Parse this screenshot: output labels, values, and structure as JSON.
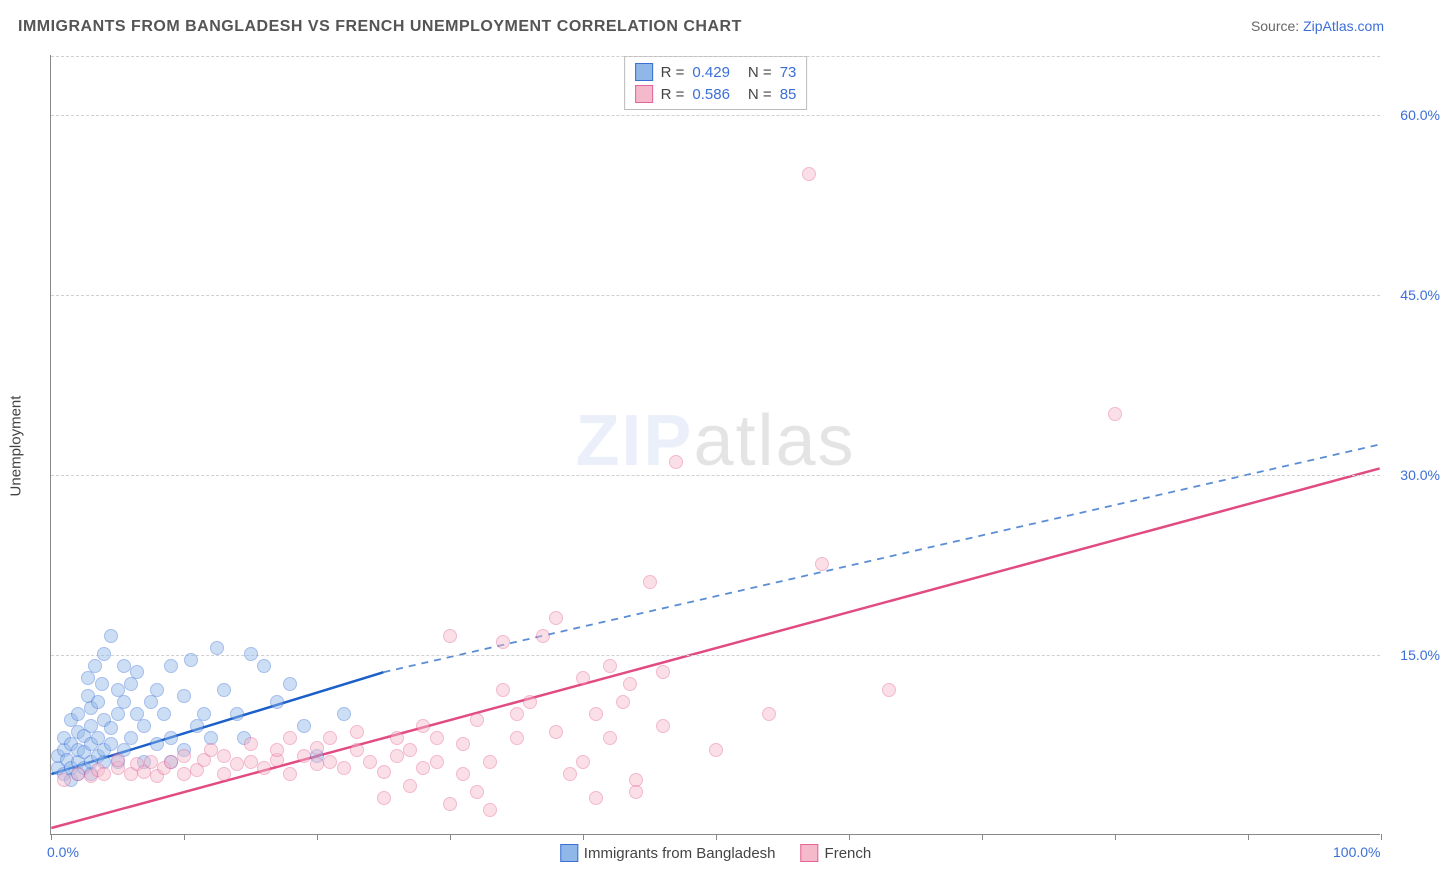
{
  "title": "IMMIGRANTS FROM BANGLADESH VS FRENCH UNEMPLOYMENT CORRELATION CHART",
  "source_label": "Source:",
  "source_name": "ZipAtlas.com",
  "ylabel": "Unemployment",
  "watermark_zip": "ZIP",
  "watermark_rest": "atlas",
  "chart": {
    "type": "scatter",
    "xlim": [
      0,
      100
    ],
    "ylim": [
      0,
      65
    ],
    "xtick_positions": [
      0,
      10,
      20,
      30,
      40,
      50,
      60,
      70,
      80,
      90,
      100
    ],
    "xtick_labels_shown": {
      "0": "0.0%",
      "100": "100.0%"
    },
    "ytick_positions": [
      15,
      30,
      45,
      60
    ],
    "ytick_labels": [
      "15.0%",
      "30.0%",
      "45.0%",
      "60.0%"
    ],
    "grid_color": "#d0d0d0",
    "background_color": "#ffffff",
    "axis_color": "#888888",
    "label_color": "#3b6fd8",
    "marker_radius": 7,
    "marker_opacity": 0.45,
    "series": [
      {
        "name": "Immigrants from Bangladesh",
        "short": "blue",
        "fill": "#8fb7e8",
        "stroke": "#3b6fd8",
        "line_color": "#1b5fc9",
        "dash_color": "#5a8dd6",
        "R": "0.429",
        "N": "73",
        "trend_solid": {
          "x1": 0,
          "y1": 5.0,
          "x2": 25,
          "y2": 13.5
        },
        "trend_dash": {
          "x1": 25,
          "y1": 13.5,
          "x2": 100,
          "y2": 32.5
        },
        "points": [
          [
            0.5,
            5.5
          ],
          [
            0.5,
            6.5
          ],
          [
            1,
            5
          ],
          [
            1,
            7
          ],
          [
            1,
            8
          ],
          [
            1.2,
            6.2
          ],
          [
            1.5,
            5.5
          ],
          [
            1.5,
            7.5
          ],
          [
            1.5,
            9.5
          ],
          [
            1.5,
            4.5
          ],
          [
            2,
            5
          ],
          [
            2,
            6
          ],
          [
            2,
            7
          ],
          [
            2,
            8.5
          ],
          [
            2,
            10
          ],
          [
            2.5,
            5.5
          ],
          [
            2.5,
            6.8
          ],
          [
            2.5,
            8.2
          ],
          [
            2.8,
            11.5
          ],
          [
            2.8,
            13
          ],
          [
            3,
            5
          ],
          [
            3,
            6
          ],
          [
            3,
            7.5
          ],
          [
            3,
            9
          ],
          [
            3,
            10.5
          ],
          [
            3.3,
            14
          ],
          [
            3.5,
            6.5
          ],
          [
            3.5,
            8
          ],
          [
            3.5,
            11
          ],
          [
            3.8,
            12.5
          ],
          [
            4,
            6
          ],
          [
            4,
            7
          ],
          [
            4,
            9.5
          ],
          [
            4,
            15
          ],
          [
            4.5,
            16.5
          ],
          [
            4.5,
            7.5
          ],
          [
            4.5,
            8.8
          ],
          [
            5,
            6
          ],
          [
            5,
            10
          ],
          [
            5,
            12
          ],
          [
            5.5,
            7
          ],
          [
            5.5,
            11
          ],
          [
            5.5,
            14
          ],
          [
            6,
            8
          ],
          [
            6,
            12.5
          ],
          [
            6.5,
            10
          ],
          [
            6.5,
            13.5
          ],
          [
            7,
            6
          ],
          [
            7,
            9
          ],
          [
            7.5,
            11
          ],
          [
            8,
            7.5
          ],
          [
            8,
            12
          ],
          [
            8.5,
            10
          ],
          [
            9,
            6
          ],
          [
            9,
            8
          ],
          [
            9,
            14
          ],
          [
            10,
            7
          ],
          [
            10,
            11.5
          ],
          [
            10.5,
            14.5
          ],
          [
            11,
            9
          ],
          [
            11.5,
            10
          ],
          [
            12,
            8
          ],
          [
            12.5,
            15.5
          ],
          [
            13,
            12
          ],
          [
            14,
            10
          ],
          [
            14.5,
            8
          ],
          [
            15,
            15
          ],
          [
            16,
            14
          ],
          [
            17,
            11
          ],
          [
            18,
            12.5
          ],
          [
            19,
            9
          ],
          [
            20,
            6.5
          ],
          [
            22,
            10
          ]
        ]
      },
      {
        "name": "French",
        "short": "pink",
        "fill": "#f5b9cc",
        "stroke": "#e66395",
        "line_color": "#e14b82",
        "dash_color": "#e66395",
        "R": "0.586",
        "N": "85",
        "trend_solid": {
          "x1": 0,
          "y1": 0.5,
          "x2": 100,
          "y2": 30.5
        },
        "trend_dash": null,
        "points": [
          [
            1,
            4.5
          ],
          [
            2,
            5
          ],
          [
            3,
            4.8
          ],
          [
            3.5,
            5.3
          ],
          [
            4,
            5
          ],
          [
            5,
            5.5
          ],
          [
            5,
            6.2
          ],
          [
            6,
            5
          ],
          [
            6.5,
            5.8
          ],
          [
            7,
            5.2
          ],
          [
            7.5,
            6
          ],
          [
            8,
            4.8
          ],
          [
            8.5,
            5.5
          ],
          [
            9,
            6
          ],
          [
            10,
            5
          ],
          [
            10,
            6.5
          ],
          [
            11,
            5.3
          ],
          [
            11.5,
            6.2
          ],
          [
            12,
            7
          ],
          [
            13,
            5
          ],
          [
            13,
            6.5
          ],
          [
            14,
            5.8
          ],
          [
            15,
            6
          ],
          [
            15,
            7.5
          ],
          [
            16,
            5.5
          ],
          [
            17,
            6.2
          ],
          [
            17,
            7
          ],
          [
            18,
            5
          ],
          [
            18,
            8
          ],
          [
            19,
            6.5
          ],
          [
            20,
            5.8
          ],
          [
            20,
            7.2
          ],
          [
            21,
            6
          ],
          [
            21,
            8
          ],
          [
            22,
            5.5
          ],
          [
            23,
            7
          ],
          [
            23,
            8.5
          ],
          [
            24,
            6
          ],
          [
            25,
            3
          ],
          [
            25,
            5.2
          ],
          [
            26,
            6.5
          ],
          [
            26,
            8
          ],
          [
            27,
            4
          ],
          [
            27,
            7
          ],
          [
            28,
            5.5
          ],
          [
            28,
            9
          ],
          [
            29,
            6
          ],
          [
            29,
            8
          ],
          [
            30,
            2.5
          ],
          [
            30,
            16.5
          ],
          [
            31,
            5
          ],
          [
            31,
            7.5
          ],
          [
            32,
            3.5
          ],
          [
            32,
            9.5
          ],
          [
            33,
            6
          ],
          [
            33,
            2
          ],
          [
            34,
            12
          ],
          [
            34,
            16
          ],
          [
            35,
            8
          ],
          [
            35,
            10
          ],
          [
            36,
            11
          ],
          [
            37,
            16.5
          ],
          [
            38,
            18
          ],
          [
            38,
            8.5
          ],
          [
            39,
            5
          ],
          [
            40,
            13
          ],
          [
            40,
            6
          ],
          [
            41,
            3
          ],
          [
            41,
            10
          ],
          [
            42,
            8
          ],
          [
            42,
            14
          ],
          [
            43,
            11
          ],
          [
            43.5,
            12.5
          ],
          [
            44,
            4.5
          ],
          [
            44,
            3.5
          ],
          [
            45,
            21
          ],
          [
            46,
            9
          ],
          [
            46,
            13.5
          ],
          [
            47,
            31
          ],
          [
            50,
            7
          ],
          [
            54,
            10
          ],
          [
            57,
            55
          ],
          [
            58,
            22.5
          ],
          [
            63,
            12
          ],
          [
            80,
            35
          ]
        ]
      }
    ]
  },
  "legend_bottom": [
    {
      "label": "Immigrants from Bangladesh",
      "fill": "#8fb7e8",
      "stroke": "#3b6fd8"
    },
    {
      "label": "French",
      "fill": "#f5b9cc",
      "stroke": "#e66395"
    }
  ]
}
